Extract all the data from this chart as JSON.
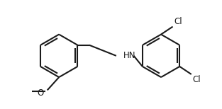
{
  "background_color": "#ffffff",
  "line_color": "#1a1a1a",
  "line_width": 1.5,
  "text_color": "#1a1a1a",
  "font_size_HN": 8.5,
  "font_size_label": 8.5,
  "label_HN": "HN",
  "label_O": "O",
  "label_Cl1": "Cl",
  "label_Cl2": "Cl"
}
